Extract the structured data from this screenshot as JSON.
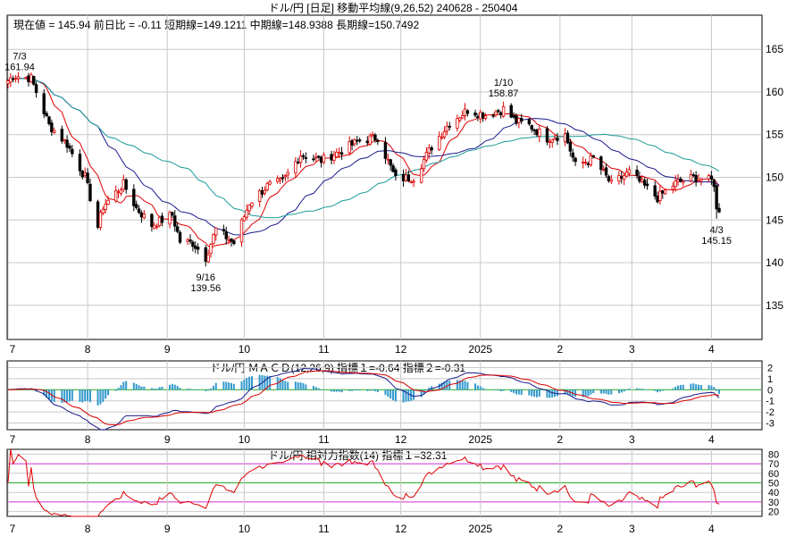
{
  "header": {
    "title": "ドル/円 [日足]  移動平均線(9,26,52)  240628 - 250404",
    "info": "現在値 = 145.94  前日比 = -0.11   短期線=149.1211   中期線=148.9388   長期線=150.7492"
  },
  "colors": {
    "up": "#dd0000",
    "down": "#000000",
    "ma_short": "#dd0000",
    "ma_mid": "#1a1a8c",
    "ma_long": "#1a9a9a",
    "macd_line": "#1a1a8c",
    "signal_line": "#dd0000",
    "histogram": "#3399cc",
    "zero_line": "#22aa22",
    "rsi_line": "#dd0000",
    "rsi_band_outer": "#cc33cc",
    "rsi_band_inner": "#22aa22",
    "grid": "#c8c8c8"
  },
  "x_labels": [
    "7",
    "8",
    "9",
    "10",
    "11",
    "12",
    "2025",
    "2",
    "3",
    "4"
  ],
  "chart_data": [
    {
      "type": "candlestick",
      "title": "ドル/円 [日足]  移動平均線(9,26,52)  240628 - 250404",
      "ylim": [
        131,
        169
      ],
      "yticks": [
        135,
        140,
        145,
        150,
        155,
        160,
        165
      ],
      "x_range": [
        "2024-07-01",
        "2025-04-04"
      ],
      "anchors": [
        {
          "date": "2024-07-01",
          "close": 161.3
        },
        {
          "date": "2024-07-03",
          "close": 161.94
        },
        {
          "date": "2024-07-10",
          "close": 161.6
        },
        {
          "date": "2024-07-17",
          "close": 156.1
        },
        {
          "date": "2024-07-24",
          "close": 153.9
        },
        {
          "date": "2024-07-31",
          "close": 150.0
        },
        {
          "date": "2024-08-05",
          "close": 144.2
        },
        {
          "date": "2024-08-07",
          "close": 146.6
        },
        {
          "date": "2024-08-15",
          "close": 149.2
        },
        {
          "date": "2024-08-20",
          "close": 146.4
        },
        {
          "date": "2024-08-26",
          "close": 144.4
        },
        {
          "date": "2024-09-03",
          "close": 145.6
        },
        {
          "date": "2024-09-06",
          "close": 142.5
        },
        {
          "date": "2024-09-11",
          "close": 142.3
        },
        {
          "date": "2024-09-16",
          "close": 140.6
        },
        {
          "date": "2024-09-20",
          "close": 143.9
        },
        {
          "date": "2024-09-27",
          "close": 142.3
        },
        {
          "date": "2024-10-03",
          "close": 147.0
        },
        {
          "date": "2024-10-10",
          "close": 149.0
        },
        {
          "date": "2024-10-16",
          "close": 149.5
        },
        {
          "date": "2024-10-23",
          "close": 152.7
        },
        {
          "date": "2024-10-31",
          "close": 152.0
        },
        {
          "date": "2024-11-07",
          "close": 153.0
        },
        {
          "date": "2024-11-15",
          "close": 154.3
        },
        {
          "date": "2024-11-22",
          "close": 154.7
        },
        {
          "date": "2024-11-29",
          "close": 149.8
        },
        {
          "date": "2024-12-06",
          "close": 150.0
        },
        {
          "date": "2024-12-13",
          "close": 153.6
        },
        {
          "date": "2024-12-20",
          "close": 156.4
        },
        {
          "date": "2024-12-27",
          "close": 157.9
        },
        {
          "date": "2025-01-03",
          "close": 157.3
        },
        {
          "date": "2025-01-10",
          "close": 158.0
        },
        {
          "date": "2025-01-15",
          "close": 156.5
        },
        {
          "date": "2025-01-20",
          "close": 156.1
        },
        {
          "date": "2025-01-27",
          "close": 154.6
        },
        {
          "date": "2025-02-03",
          "close": 155.0
        },
        {
          "date": "2025-02-07",
          "close": 151.4
        },
        {
          "date": "2025-02-14",
          "close": 152.2
        },
        {
          "date": "2025-02-21",
          "close": 149.2
        },
        {
          "date": "2025-02-28",
          "close": 150.6
        },
        {
          "date": "2025-03-05",
          "close": 149.2
        },
        {
          "date": "2025-03-11",
          "close": 147.6
        },
        {
          "date": "2025-03-18",
          "close": 149.3
        },
        {
          "date": "2025-03-25",
          "close": 150.0
        },
        {
          "date": "2025-04-01",
          "close": 149.6
        },
        {
          "date": "2025-04-02",
          "close": 149.3
        },
        {
          "date": "2025-04-03",
          "close": 146.1
        },
        {
          "date": "2025-04-04",
          "close": 145.94
        }
      ],
      "moving_averages": [
        {
          "name": "短期線",
          "period": 9,
          "last": 149.1211
        },
        {
          "name": "中期線",
          "period": 26,
          "last": 148.9388
        },
        {
          "name": "長期線",
          "period": 52,
          "last": 150.7492
        }
      ],
      "annotations": [
        {
          "date_label": "7/3",
          "value_label": "161.94",
          "date": "2024-07-03",
          "value": 161.94,
          "position": "above"
        },
        {
          "date_label": "9/16",
          "value_label": "139.56",
          "date": "2024-09-16",
          "value": 139.56,
          "position": "below"
        },
        {
          "date_label": "1/10",
          "value_label": "158.87",
          "date": "2025-01-10",
          "value": 158.87,
          "position": "above"
        },
        {
          "date_label": "4/3",
          "value_label": "145.15",
          "date": "2025-04-03",
          "value": 145.15,
          "position": "below"
        }
      ]
    },
    {
      "type": "macd",
      "title": "ドル/円   ＭＡＣＤ(12,26,9) 指標１=-0.64  指標２=-0.31",
      "params": [
        12,
        26,
        9
      ],
      "value_1": -0.64,
      "value_2": -0.31,
      "ylim": [
        -3.6,
        2.6
      ],
      "yticks": [
        2,
        1,
        0,
        -1,
        -2,
        -3
      ]
    },
    {
      "type": "rsi",
      "title": "ドル/円    相対力指数(14) 指標１=32.31",
      "period": 14,
      "value_1": 32.31,
      "ylim": [
        15,
        85
      ],
      "yticks": [
        80,
        70,
        60,
        50,
        40,
        30,
        20
      ],
      "bands_outer": [
        70,
        30
      ],
      "bands_inner": [
        50
      ]
    }
  ]
}
